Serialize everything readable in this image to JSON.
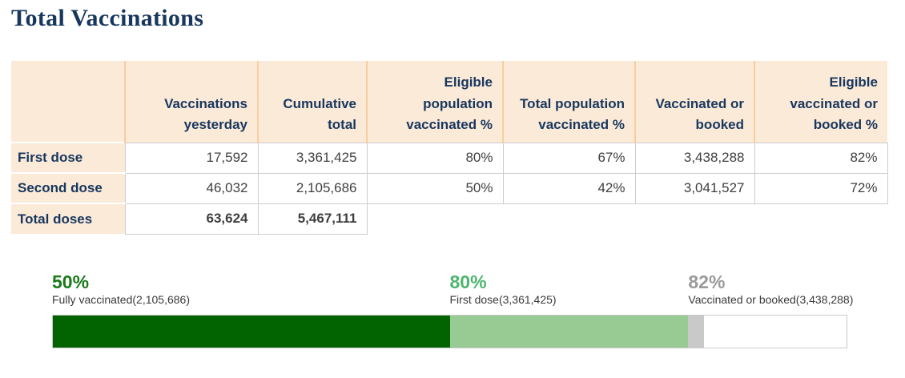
{
  "title": "Total Vaccinations",
  "table": {
    "headers": [
      "Vaccinations yesterday",
      "Cumulative total",
      "Eligible population vaccinated %",
      "Total population vaccinated %",
      "Vaccinated or booked",
      "Eligible vaccinated or booked %"
    ],
    "rows": [
      {
        "label": "First dose",
        "cells": [
          "17,592",
          "3,361,425",
          "80%",
          "67%",
          "3,438,288",
          "82%"
        ]
      },
      {
        "label": "Second dose",
        "cells": [
          "46,032",
          "2,105,686",
          "50%",
          "42%",
          "3,041,527",
          "72%"
        ]
      },
      {
        "label": "Total doses",
        "cells": [
          "63,624",
          "5,467,111",
          "",
          "",
          "",
          ""
        ]
      }
    ]
  },
  "chart_data": {
    "type": "progress-bar",
    "max_pct": 100,
    "track_color": "#ffffff",
    "track_border_color": "#c9c9c9",
    "segments": [
      {
        "name": "Fully vaccinated",
        "count": "2,105,686",
        "cumulative_pct": 50,
        "pct_label": "50%",
        "annotation": "Fully vaccinated(2,105,686)",
        "bar_color": "#016401",
        "label_color": "#1a7a1a"
      },
      {
        "name": "First dose",
        "count": "3,361,425",
        "cumulative_pct": 80,
        "pct_label": "80%",
        "annotation": "First dose(3,361,425)",
        "bar_color": "#98cb94",
        "label_color": "#4db56e"
      },
      {
        "name": "Vaccinated or booked",
        "count": "3,438,288",
        "cumulative_pct": 82,
        "pct_label": "82%",
        "annotation": "Vaccinated or booked(3,438,288)",
        "bar_color": "#c9c9c9",
        "label_color": "#9a9a9a"
      }
    ]
  },
  "theme": {
    "title_color": "#17375e",
    "header_bg": "#fcead8",
    "header_separator": "#f6cf9e",
    "grid_border": "#cccccc",
    "data_text": "#3f3f3f"
  }
}
